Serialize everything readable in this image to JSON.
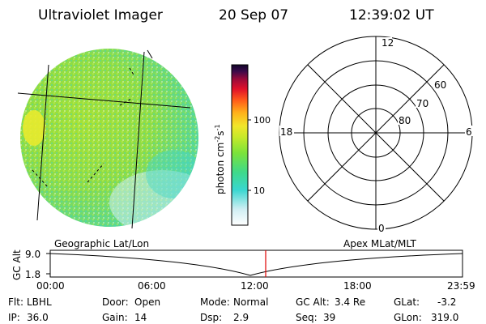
{
  "header": {
    "instrument": "Ultraviolet Imager",
    "date": "20 Sep 07",
    "time": "12:39:02 UT"
  },
  "colorbar": {
    "unit_label": "photon cm⁻²s⁻¹",
    "unit_prefix": "photon cm",
    "unit_exp1": "-2",
    "unit_mid": "s",
    "unit_exp2": "-1",
    "tick_100": "100",
    "tick_10": "10",
    "scale": "log"
  },
  "polar": {
    "mlt_labels": {
      "top": "12",
      "left": "18",
      "right": "6",
      "bottom": "0"
    },
    "lat_labels": [
      "60",
      "70",
      "80"
    ]
  },
  "timeline": {
    "left_title": "Geographic Lat/Lon",
    "right_title": "Apex MLat/MLT",
    "y_axis_label": "GC Alt",
    "y_top": "9.0",
    "y_bottom": "1.8",
    "x_ticks": [
      "00:00",
      "06:00",
      "12:00",
      "18:00",
      "23:59"
    ],
    "marker_color": "#e00000"
  },
  "status": {
    "row1": [
      {
        "label": "Flt:",
        "value": "LBHL"
      },
      {
        "label": "Door:",
        "value": "Open"
      },
      {
        "label": "Mode:",
        "value": "Normal"
      },
      {
        "label": "GC Alt:",
        "value": "3.4 Re"
      },
      {
        "label": "GLat:",
        "value": "-3.2"
      }
    ],
    "row2": [
      {
        "label": "IP:",
        "value": "36.0"
      },
      {
        "label": "Gain:",
        "value": "14"
      },
      {
        "label": "Dsp:",
        "value": "2.9"
      },
      {
        "label": "Seq:",
        "value": "39"
      },
      {
        "label": "GLon:",
        "value": "319.0"
      }
    ]
  }
}
